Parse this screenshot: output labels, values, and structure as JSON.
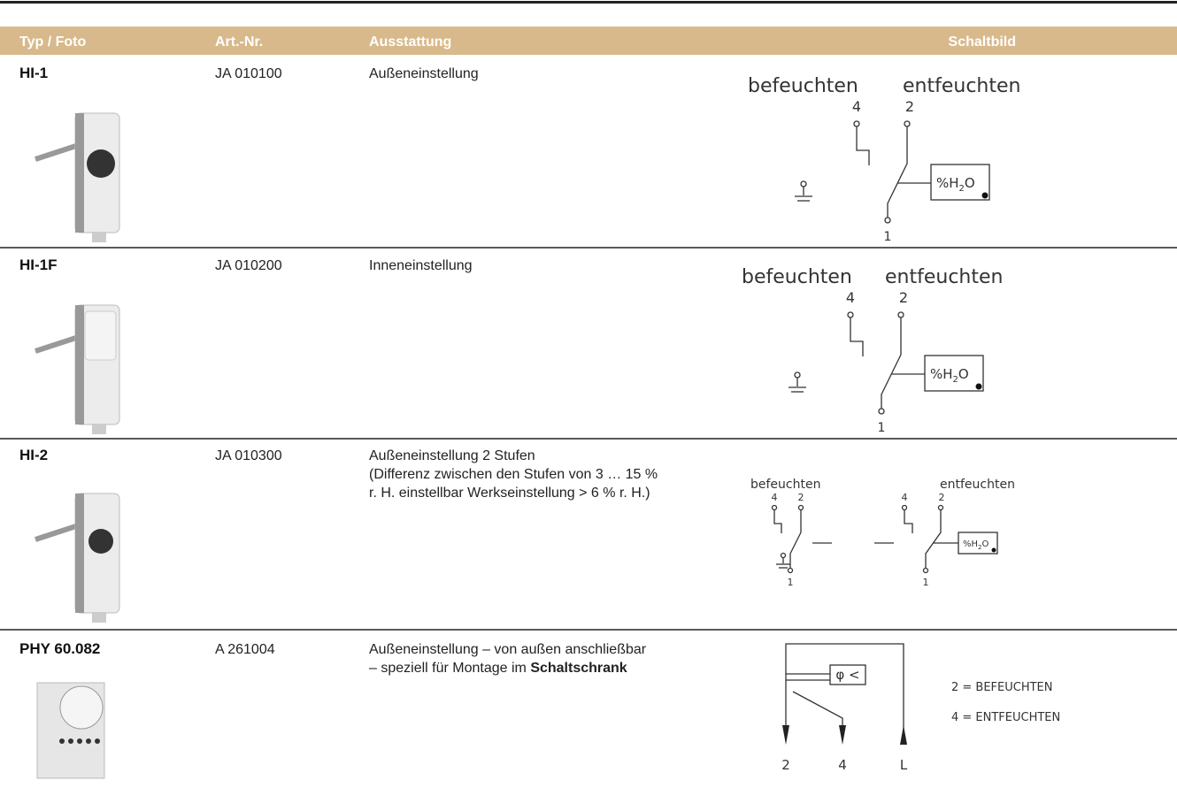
{
  "header": {
    "columns": [
      "Typ / Foto",
      "Art.-Nr.",
      "Ausstattung",
      "Schaltbild"
    ]
  },
  "rows": [
    {
      "type": "HI-1",
      "art_nr": "JA 010100",
      "description": [
        "Außeneinstellung"
      ],
      "schematic": {
        "left": "befeuchten",
        "right": "entfeuchten",
        "terminals": [
          "4",
          "2",
          "1"
        ],
        "sensor": [
          "%H",
          "2",
          "O"
        ]
      }
    },
    {
      "type": "HI-1F",
      "art_nr": "JA 010200",
      "description": [
        "Inneneinstellung"
      ],
      "schematic": {
        "left": "befeuchten",
        "right": "entfeuchten",
        "terminals": [
          "4",
          "2",
          "1"
        ],
        "sensor": [
          "%H",
          "2",
          "O"
        ]
      }
    },
    {
      "type": "HI-2",
      "art_nr": "JA 010300",
      "description": [
        "Außeneinstellung 2 Stufen",
        "(Differenz zwischen den Stufen von 3 … 15 %",
        "r. H. einstellbar Werkseinstellung > 6 % r. H.)"
      ],
      "schematic": {
        "left": "befeuchten",
        "right": "entfeuchten",
        "terminals": [
          "4",
          "2",
          "4",
          "2",
          "1",
          "1"
        ],
        "sensor": [
          "%H",
          "2",
          "O"
        ]
      }
    },
    {
      "type": "PHY 60.082",
      "art_nr": "A 261004",
      "description": [
        "Außeneinstellung – von außen anschließbar",
        {
          "text": "– speziell für Montage im ",
          "bold": "Schaltschrank"
        }
      ],
      "schematic": {
        "sensor": "φ <",
        "legend": [
          "2 = BEFEUCHTEN",
          "4 = ENTFEUCHTEN"
        ],
        "terminals": [
          "2",
          "4",
          "L"
        ]
      }
    }
  ]
}
